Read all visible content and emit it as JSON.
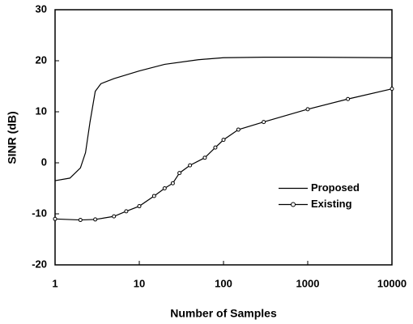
{
  "chart_data": {
    "type": "line",
    "x_label": "Number of Samples",
    "y_label": "SINR (dB)",
    "xscale": "log",
    "xlim": [
      1,
      10000
    ],
    "xticks": [
      1,
      10,
      100,
      1000,
      10000
    ],
    "ylim": [
      -20,
      30
    ],
    "yticks": [
      -20,
      -10,
      0,
      10,
      20,
      30
    ],
    "grid": false,
    "legend": "lower right",
    "series": [
      {
        "name": "Proposed",
        "color": "#000000",
        "marker": "none",
        "x": [
          1,
          1.5,
          2,
          2.3,
          2.6,
          3,
          3.5,
          5,
          10,
          20,
          50,
          100,
          300,
          1000,
          10000
        ],
        "values": [
          -3.5,
          -3,
          -1,
          2,
          8,
          14,
          15.5,
          16.5,
          18,
          19.3,
          20.2,
          20.6,
          20.7,
          20.7,
          20.6
        ]
      },
      {
        "name": "Existing",
        "color": "#000000",
        "marker": "circle",
        "x": [
          1,
          2,
          3,
          5,
          7,
          10,
          15,
          20,
          25,
          30,
          40,
          60,
          80,
          100,
          150,
          300,
          1000,
          3000,
          10000
        ],
        "values": [
          -11,
          -11.2,
          -11.1,
          -10.5,
          -9.5,
          -8.5,
          -6.5,
          -5,
          -4,
          -2,
          -0.5,
          1,
          3,
          4.5,
          6.5,
          8,
          10.5,
          12.5,
          14.5
        ]
      }
    ]
  }
}
